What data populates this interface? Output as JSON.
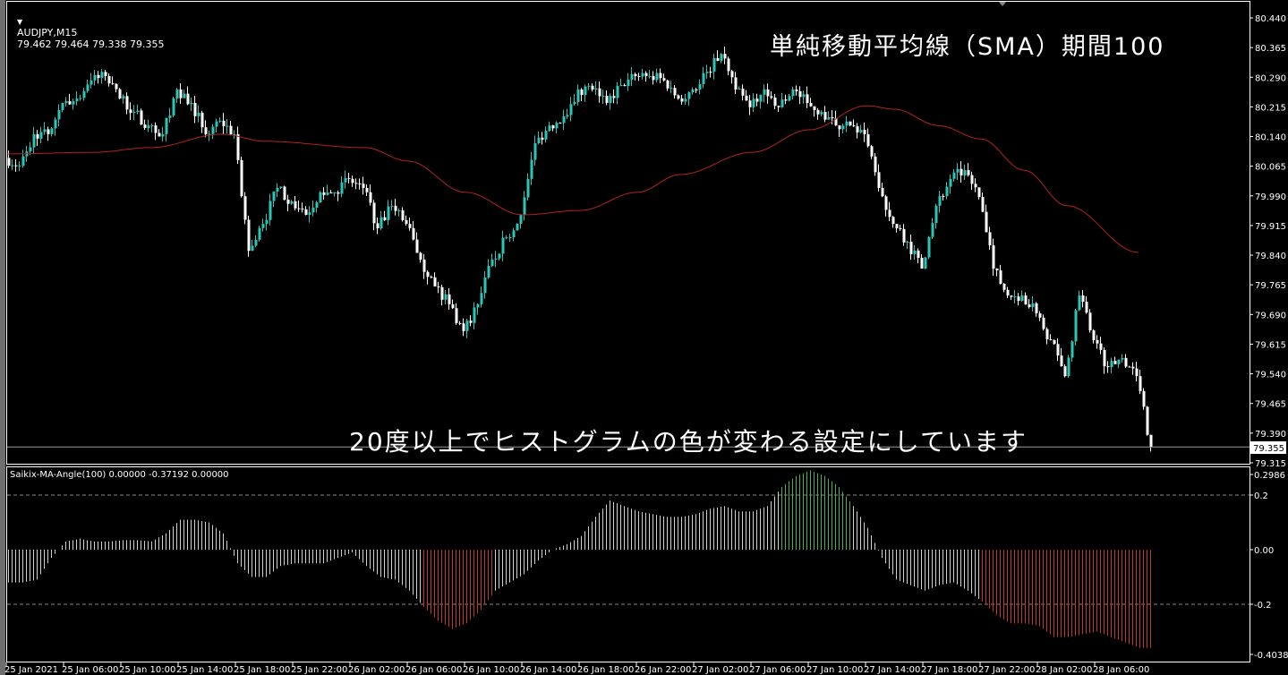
{
  "header": {
    "symbol": "AUDJPY,M15",
    "ohlc": "79.462 79.464 79.338 79.355",
    "menu_icon": "triangle-down-icon"
  },
  "captions": {
    "top": "単純移動平均線（SMA）期間100",
    "bottom": "20度以上でヒストグラムの色が変わる設定にしています"
  },
  "indicator": {
    "label": "Saikix-MA-Angle(100) 0.00000 -0.37192 0.00000"
  },
  "colors": {
    "bull_candle": "#2ec4b6",
    "bear_candle": "#ffffff",
    "sma": "#b22222",
    "hist_neutral": "#d0d0d0",
    "hist_up": "#4caf50",
    "hist_down": "#c0392b",
    "bid_line": "#9a9a9a"
  },
  "chart_data": [
    {
      "type": "candlestick",
      "symbol": "AUDJPY",
      "timeframe": "M15",
      "ylim": [
        79.315,
        80.44
      ],
      "y_ticks": [
        "80.440",
        "80.365",
        "80.290",
        "80.215",
        "80.140",
        "80.065",
        "79.990",
        "79.915",
        "79.840",
        "79.765",
        "79.690",
        "79.615",
        "79.540",
        "79.465",
        "79.390",
        "79.315"
      ],
      "current_price": "79.355",
      "x_ticks": [
        "25 Jan 2021",
        "25 Jan 06:00",
        "25 Jan 10:00",
        "25 Jan 14:00",
        "25 Jan 18:00",
        "25 Jan 22:00",
        "26 Jan 02:00",
        "26 Jan 06:00",
        "26 Jan 10:00",
        "26 Jan 14:00",
        "26 Jan 18:00",
        "26 Jan 22:00",
        "27 Jan 02:00",
        "27 Jan 06:00",
        "27 Jan 10:00",
        "27 Jan 14:00",
        "27 Jan 18:00",
        "27 Jan 22:00",
        "28 Jan 02:00",
        "28 Jan 06:00"
      ],
      "hourly_close": [
        80.066,
        80.146,
        80.146,
        80.225,
        80.236,
        80.282,
        80.293,
        80.236,
        80.202,
        80.168,
        80.146,
        80.259,
        80.225,
        80.146,
        80.18,
        80.146,
        79.851,
        79.919,
        80.01,
        79.976,
        79.942,
        79.999,
        79.999,
        80.033,
        80.01,
        79.908,
        79.965,
        79.919,
        79.829,
        79.761,
        79.716,
        79.648,
        79.716,
        79.829,
        79.885,
        79.942,
        80.123,
        80.168,
        80.191,
        80.259,
        80.259,
        80.225,
        80.27,
        80.293,
        80.293,
        80.282,
        80.236,
        80.259,
        80.304,
        80.349,
        80.259,
        80.214,
        80.259,
        80.214,
        80.259,
        80.225,
        80.202,
        80.168,
        80.168,
        80.146,
        80.01,
        79.919,
        79.874,
        79.806,
        79.965,
        80.033,
        80.055,
        79.987,
        79.806,
        79.738,
        79.738,
        79.693,
        79.625,
        79.534,
        79.738,
        79.625,
        79.557,
        79.58,
        79.534,
        79.355
      ],
      "sma_100": [
        [
          0,
          80.096
        ],
        [
          6,
          80.1
        ],
        [
          10,
          80.112
        ],
        [
          15,
          80.146
        ],
        [
          18,
          80.128
        ],
        [
          25,
          80.112
        ],
        [
          28,
          80.078
        ],
        [
          32,
          79.999
        ],
        [
          36,
          79.942
        ],
        [
          40,
          79.953
        ],
        [
          44,
          79.999
        ],
        [
          47,
          80.044
        ],
        [
          52,
          80.1
        ],
        [
          56,
          80.157
        ],
        [
          60,
          80.218
        ],
        [
          62,
          80.209
        ],
        [
          65,
          80.168
        ],
        [
          68,
          80.134
        ],
        [
          71,
          80.055
        ],
        [
          74,
          79.965
        ],
        [
          79,
          79.847
        ]
      ]
    },
    {
      "type": "bar",
      "name": "Saikix-MA-Angle(100)",
      "ylim": [
        -0.40385,
        0.2986
      ],
      "y_ticks": [
        "0.2986",
        "0.2",
        "0.00",
        "-0.2",
        "-0.40385"
      ],
      "levels": [
        0.2,
        -0.2
      ],
      "hourly_values": [
        -0.12,
        -0.12,
        -0.11,
        -0.03,
        0.03,
        0.04,
        0.03,
        0.03,
        0.035,
        0.035,
        0.03,
        0.06,
        0.11,
        0.11,
        0.1,
        0.06,
        -0.05,
        -0.1,
        -0.1,
        -0.06,
        -0.05,
        -0.05,
        -0.05,
        -0.03,
        -0.01,
        -0.06,
        -0.1,
        -0.11,
        -0.15,
        -0.21,
        -0.26,
        -0.29,
        -0.27,
        -0.22,
        -0.15,
        -0.12,
        -0.09,
        -0.04,
        0.0,
        0.02,
        0.05,
        0.12,
        0.18,
        0.16,
        0.14,
        0.13,
        0.12,
        0.12,
        0.13,
        0.15,
        0.16,
        0.14,
        0.14,
        0.16,
        0.23,
        0.27,
        0.29,
        0.27,
        0.23,
        0.16,
        0.08,
        -0.03,
        -0.11,
        -0.13,
        -0.15,
        -0.13,
        -0.12,
        -0.15,
        -0.19,
        -0.24,
        -0.27,
        -0.27,
        -0.28,
        -0.32,
        -0.32,
        -0.31,
        -0.3,
        -0.32,
        -0.34,
        -0.36
      ],
      "hourly_state": [
        "n",
        "n",
        "n",
        "n",
        "n",
        "n",
        "n",
        "n",
        "n",
        "n",
        "n",
        "n",
        "n",
        "n",
        "n",
        "n",
        "n",
        "n",
        "n",
        "n",
        "n",
        "n",
        "n",
        "n",
        "n",
        "n",
        "n",
        "n",
        "n",
        "d",
        "d",
        "d",
        "d",
        "d",
        "n",
        "n",
        "n",
        "n",
        "n",
        "n",
        "n",
        "n",
        "n",
        "n",
        "n",
        "n",
        "n",
        "n",
        "n",
        "n",
        "n",
        "n",
        "n",
        "n",
        "u",
        "u",
        "u",
        "u",
        "u",
        "n",
        "n",
        "n",
        "n",
        "n",
        "n",
        "n",
        "n",
        "n",
        "d",
        "d",
        "d",
        "d",
        "d",
        "d",
        "d",
        "d",
        "d",
        "d",
        "d",
        "d"
      ]
    }
  ]
}
